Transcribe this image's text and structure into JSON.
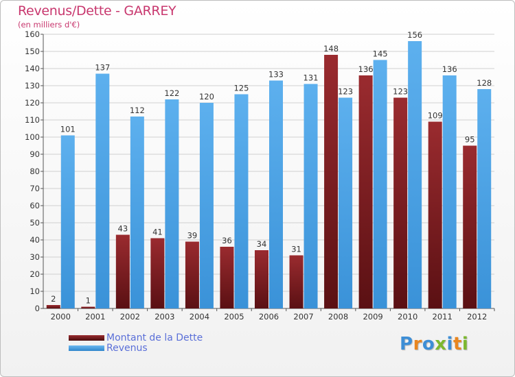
{
  "chart_data": {
    "type": "bar",
    "title": "Revenus/Dette - GARREY",
    "subtitle": "(en milliers d'€)",
    "xlabel": "",
    "ylabel": "",
    "ylim": [
      0,
      160
    ],
    "yticks": [
      0,
      10,
      20,
      30,
      40,
      50,
      60,
      70,
      80,
      90,
      100,
      110,
      120,
      130,
      140,
      150,
      160
    ],
    "grid": true,
    "categories": [
      "2000",
      "2001",
      "2002",
      "2003",
      "2004",
      "2005",
      "2006",
      "2007",
      "2008",
      "2009",
      "2010",
      "2011",
      "2012"
    ],
    "series": [
      {
        "name": "Montant de la Dette",
        "color": "#7a1f22",
        "values": [
          2,
          1,
          43,
          41,
          39,
          36,
          34,
          31,
          148,
          136,
          123,
          109,
          95
        ]
      },
      {
        "name": "Revenus",
        "color": "#4aa3e6",
        "values": [
          101,
          137,
          112,
          122,
          120,
          125,
          133,
          131,
          123,
          145,
          156,
          136,
          128
        ]
      }
    ],
    "legend_position": "bottom-left"
  },
  "logo": {
    "letters": [
      "P",
      "r",
      "o",
      "x",
      "i",
      "t",
      "i"
    ],
    "colors": [
      "#3d8ed6",
      "#e9861f",
      "#3d8ed6",
      "#7cb82f",
      "#3d8ed6",
      "#e9861f",
      "#7cb82f"
    ]
  }
}
